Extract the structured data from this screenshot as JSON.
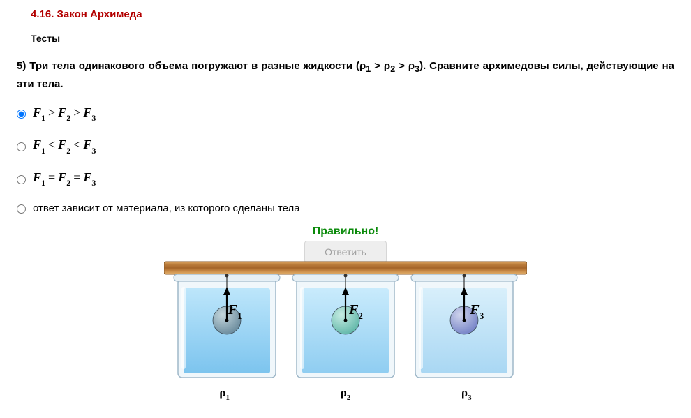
{
  "section_title": "4.16. Закон Архимеда",
  "tests_label": "Тесты",
  "question_prefix": "5) ",
  "question_text": "Три тела одинакового объема погружают в разные жидкости (ρ",
  "question_mid1": " > ρ",
  "question_mid2": " > ρ",
  "question_tail": "). Сравните архимедовы силы, действующие на эти тела.",
  "answers": [
    {
      "type": "math",
      "F1": "F",
      "s1": "1",
      "op1": ">",
      "F2": "F",
      "s2": "2",
      "op2": ">",
      "F3": "F",
      "s3": "3",
      "checked": true
    },
    {
      "type": "math",
      "F1": "F",
      "s1": "1",
      "op1": "<",
      "F2": "F",
      "s2": "2",
      "op2": "<",
      "F3": "F",
      "s3": "3",
      "checked": false
    },
    {
      "type": "math",
      "F1": "F",
      "s1": "1",
      "op1": "=",
      "F2": "F",
      "s2": "2",
      "op2": "=",
      "F3": "F",
      "s3": "3",
      "checked": false
    },
    {
      "type": "plain",
      "text": "ответ зависит от материала, из которого сделаны тела",
      "checked": false
    }
  ],
  "feedback": {
    "correct_label": "Правильно!",
    "button_label": "Ответить"
  },
  "diagram": {
    "plank": {
      "colors": [
        "#d9a25f",
        "#b97a3a",
        "#a56529",
        "#c98b48",
        "#e3b06c"
      ],
      "border": "#8a5a28"
    },
    "beaker_outline": "#9fb8c9",
    "beaker_highlight": "#ffffff",
    "beakers": [
      {
        "water_top": "#bde6fb",
        "water_bottom": "#7cc4ee",
        "ball_fill": "#6f8fa0",
        "ball_highlight": "#c5d7dd",
        "F_letter": "F",
        "F_sub": "1",
        "rho_letter": "ρ",
        "rho_sub": "1"
      },
      {
        "water_top": "#c9ebfc",
        "water_bottom": "#8fcdf1",
        "ball_fill": "#67baac",
        "ball_highlight": "#c6ece3",
        "F_letter": "F",
        "F_sub": "2",
        "rho_letter": "ρ",
        "rho_sub": "2"
      },
      {
        "water_top": "#d8effb",
        "water_bottom": "#a9d7f3",
        "ball_fill": "#7a87c9",
        "ball_highlight": "#cfd4ec",
        "F_letter": "F",
        "F_sub": "3",
        "rho_letter": "ρ",
        "rho_sub": "3"
      }
    ]
  }
}
